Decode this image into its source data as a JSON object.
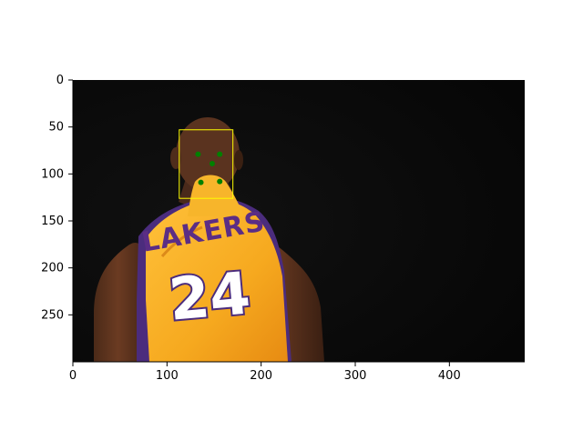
{
  "chart_data": {
    "type": "image",
    "image": {
      "width": 480,
      "height": 300,
      "description_for_render": "dark background with basketball player in yellow Lakers jersey numbered 24"
    },
    "xlim": [
      0,
      480
    ],
    "ylim": [
      300,
      0
    ],
    "x_ticks": [
      0,
      100,
      200,
      300,
      400
    ],
    "y_ticks": [
      0,
      50,
      100,
      150,
      200,
      250
    ],
    "x_tick_labels": [
      "0",
      "100",
      "200",
      "300",
      "400"
    ],
    "y_tick_labels": [
      "0",
      "50",
      "100",
      "150",
      "200",
      "250"
    ],
    "jersey_text": {
      "team": "LAKERS",
      "number": "24"
    },
    "overlays": {
      "face_box": {
        "x": 113,
        "y": 53,
        "w": 57,
        "h": 73,
        "color": "#ffff00"
      },
      "landmarks": {
        "color": "#008000",
        "points": [
          [
            133,
            79
          ],
          [
            156,
            79
          ],
          [
            148,
            89
          ],
          [
            136,
            109
          ],
          [
            156,
            108
          ]
        ]
      }
    }
  }
}
